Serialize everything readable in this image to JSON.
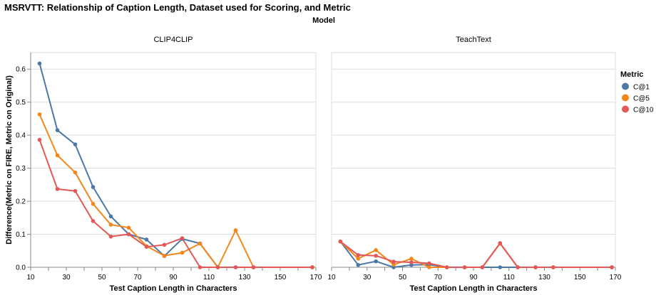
{
  "chart_data": {
    "type": "line",
    "title": "MSRVTT: Relationship of Caption Length, Dataset used for Scoring, and Metric",
    "facet_title": "Model",
    "xlabel": "Test Caption Length in Characters",
    "ylabel": "Difference(Metric on FIRE, Metric on Original)",
    "xlim": [
      10,
      170
    ],
    "ylim": [
      0,
      0.65
    ],
    "x_ticks": [
      10,
      30,
      50,
      70,
      90,
      110,
      130,
      150,
      170
    ],
    "y_ticks": [
      0.0,
      0.1,
      0.2,
      0.3,
      0.4,
      0.5,
      0.6
    ],
    "x_tick_labels": [
      "10",
      "30",
      "50",
      "70",
      "90",
      "110",
      "130",
      "150",
      "170"
    ],
    "y_tick_labels": [
      "0.0",
      "0.1",
      "0.2",
      "0.3",
      "0.4",
      "0.5",
      "0.6"
    ],
    "legend": {
      "title": "Metric",
      "position": "top-right"
    },
    "colors": {
      "C@1": "#4c78a8",
      "C@5": "#f58518",
      "C@10": "#e45756"
    },
    "panels": [
      {
        "title": "CLIP4CLIP",
        "series": [
          {
            "name": "C@1",
            "x": [
              15,
              25,
              35,
              45,
              55,
              65,
              75,
              85,
              95,
              105,
              115,
              125,
              135,
              168
            ],
            "y": [
              0.617,
              0.415,
              0.372,
              0.243,
              0.154,
              0.1,
              0.084,
              0.034,
              0.086,
              0.072,
              0.0,
              0.0,
              0.0,
              0.0
            ]
          },
          {
            "name": "C@5",
            "x": [
              15,
              25,
              35,
              45,
              55,
              65,
              75,
              85,
              95,
              105,
              115,
              125,
              135,
              168
            ],
            "y": [
              0.463,
              0.339,
              0.287,
              0.192,
              0.129,
              0.12,
              0.064,
              0.035,
              0.044,
              0.072,
              0.0,
              0.112,
              0.0,
              0.0
            ]
          },
          {
            "name": "C@10",
            "x": [
              15,
              25,
              35,
              45,
              55,
              65,
              75,
              85,
              95,
              105,
              115,
              125,
              135,
              168
            ],
            "y": [
              0.386,
              0.237,
              0.231,
              0.14,
              0.093,
              0.1,
              0.062,
              0.068,
              0.088,
              0.0,
              0.0,
              0.0,
              0.0,
              0.0
            ]
          }
        ]
      },
      {
        "title": "TeachText",
        "series": [
          {
            "name": "C@1",
            "x": [
              15,
              25,
              35,
              45,
              55,
              65,
              75,
              85,
              95,
              105,
              115,
              125,
              135,
              168
            ],
            "y": [
              0.078,
              0.007,
              0.018,
              0.0,
              0.007,
              0.008,
              0.0,
              0.0,
              0.0,
              0.0,
              0.0,
              0.0,
              0.0,
              0.0
            ]
          },
          {
            "name": "C@5",
            "x": [
              15,
              25,
              35,
              45,
              55,
              65,
              75,
              85,
              95,
              105,
              115,
              125,
              135,
              168
            ],
            "y": [
              0.078,
              0.026,
              0.052,
              0.008,
              0.026,
              0.0,
              0.0,
              0.0,
              0.0,
              0.072,
              0.0,
              0.0,
              0.0,
              0.0
            ]
          },
          {
            "name": "C@10",
            "x": [
              15,
              25,
              35,
              45,
              55,
              65,
              75,
              85,
              95,
              105,
              115,
              125,
              135,
              168
            ],
            "y": [
              0.078,
              0.037,
              0.035,
              0.017,
              0.015,
              0.012,
              0.0,
              0.0,
              0.0,
              0.073,
              0.0,
              0.0,
              0.0,
              0.0
            ]
          }
        ]
      }
    ]
  }
}
